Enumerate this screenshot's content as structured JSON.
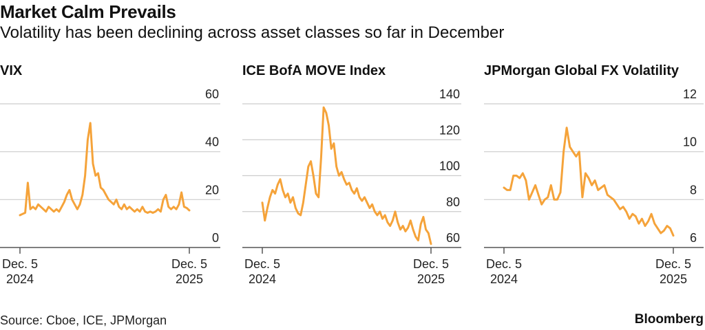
{
  "header": {
    "title": "Market Calm Prevails",
    "subtitle": "Volatility has been declining across asset classes so far in December"
  },
  "footer": {
    "source": "Source: Cboe, ICE, JPMorgan",
    "brand": "Bloomberg"
  },
  "style": {
    "line_color": "#F5A33A",
    "grid_color": "#cccccc",
    "axis_color": "#555555"
  },
  "chart_data": [
    {
      "type": "line",
      "title": "VIX",
      "xlabel": "",
      "ylabel": "",
      "ylim": [
        0,
        60
      ],
      "yticks": [
        0,
        20,
        40,
        60
      ],
      "x_tick_labels": [
        [
          "Dec. 5",
          "2024"
        ],
        [
          "Dec. 5",
          "2025"
        ]
      ],
      "x_range": [
        "2024-12-05",
        "2025-12-05"
      ],
      "grid": true,
      "series": [
        {
          "name": "VIX",
          "values": [
            13.5,
            14,
            14.5,
            27,
            16,
            17,
            16,
            18,
            17,
            16,
            15,
            17,
            16,
            15,
            16,
            15,
            17,
            19,
            22,
            24,
            20,
            18,
            16,
            18,
            22,
            30,
            45,
            52,
            35,
            30,
            31,
            25,
            24,
            22,
            20,
            19,
            18,
            20,
            17,
            16,
            18,
            16,
            17,
            16,
            15,
            16,
            15,
            17,
            15,
            14.5,
            15,
            14.5,
            15,
            16,
            15,
            20,
            22,
            17,
            16,
            17,
            16,
            18,
            23,
            17,
            16.5,
            15.5
          ]
        }
      ]
    },
    {
      "type": "line",
      "title": "ICE BofA MOVE Index",
      "xlabel": "",
      "ylabel": "",
      "ylim": [
        60,
        140
      ],
      "yticks": [
        60,
        80,
        100,
        120,
        140
      ],
      "x_tick_labels": [
        [
          "Dec. 5",
          "2024"
        ],
        [
          "Dec. 5",
          "2025"
        ]
      ],
      "x_range": [
        "2024-12-05",
        "2025-12-05"
      ],
      "grid": true,
      "series": [
        {
          "name": "MOVE",
          "values": [
            85,
            75,
            82,
            88,
            92,
            90,
            95,
            98,
            92,
            88,
            90,
            85,
            88,
            82,
            79,
            78,
            85,
            95,
            105,
            108,
            100,
            90,
            88,
            110,
            138,
            135,
            128,
            115,
            118,
            105,
            100,
            102,
            98,
            95,
            96,
            92,
            90,
            93,
            88,
            86,
            88,
            85,
            82,
            84,
            80,
            78,
            80,
            76,
            78,
            74,
            72,
            75,
            80,
            74,
            70,
            72,
            69,
            71,
            75,
            70,
            66,
            64,
            73,
            77,
            70,
            68,
            62
          ]
        }
      ]
    },
    {
      "type": "line",
      "title": "JPMorgan Global FX Volatility",
      "xlabel": "",
      "ylabel": "",
      "ylim": [
        6,
        12
      ],
      "yticks": [
        6,
        8,
        10,
        12
      ],
      "x_tick_labels": [
        [
          "Dec. 5",
          "2024"
        ],
        [
          "Dec. 5",
          "2025"
        ]
      ],
      "x_range": [
        "2024-12-05",
        "2025-12-05"
      ],
      "grid": true,
      "series": [
        {
          "name": "JPMorgan Global FX Volatility",
          "values": [
            8.5,
            8.4,
            8.4,
            9.0,
            9.0,
            8.9,
            9.1,
            8.8,
            8.0,
            8.3,
            8.6,
            8.2,
            7.8,
            8.0,
            8.1,
            8.6,
            8.0,
            8.0,
            8.3,
            10.0,
            11.0,
            10.2,
            10.0,
            9.8,
            10.0,
            8.1,
            9.1,
            8.9,
            8.6,
            8.8,
            8.4,
            8.5,
            8.6,
            8.2,
            8.1,
            8.0,
            7.8,
            7.6,
            7.7,
            7.5,
            7.2,
            7.4,
            7.3,
            7.0,
            7.2,
            6.9,
            7.1,
            7.4,
            7.0,
            6.8,
            6.6,
            6.7,
            6.9,
            6.8,
            6.5
          ]
        }
      ]
    }
  ]
}
